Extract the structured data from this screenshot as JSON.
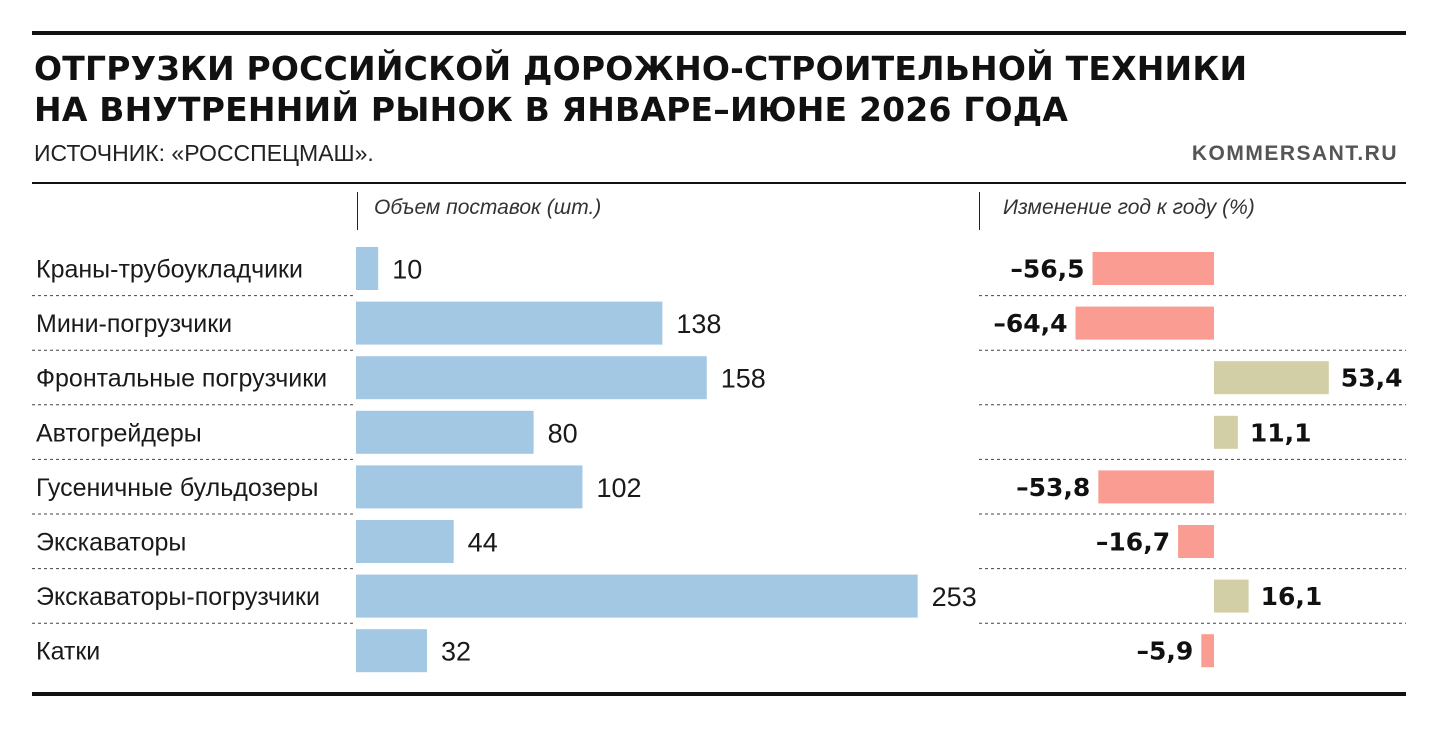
{
  "header": {
    "title_line1": "ОТГРУЗКИ РОССИЙСКОЙ ДОРОЖНО-СТРОИТЕЛЬНОЙ ТЕХНИКИ",
    "title_line2": "НА ВНУТРЕННИЙ РЫНОК В ЯНВАРЕ–ИЮНЕ 2026 ГОДА",
    "source": "ИСТОЧНИК: «РОССПЕЦМАШ».",
    "brand": "KOMMERSANT.RU"
  },
  "chart_data": {
    "type": "bar",
    "orientation": "horizontal",
    "categories": [
      "Краны-трубоукладчики",
      "Мини-погрузчики",
      "Фронтальные погрузчики",
      "Автогрейдеры",
      "Гусеничные бульдозеры",
      "Экскаваторы",
      "Экскаваторы-погрузчики",
      "Катки"
    ],
    "series": [
      {
        "name": "Объем поставок (шт.)",
        "values": [
          10,
          138,
          158,
          80,
          102,
          44,
          253,
          32
        ],
        "labels": [
          "10",
          "138",
          "158",
          "80",
          "102",
          "44",
          "253",
          "32"
        ],
        "color": "#a3c8e4"
      },
      {
        "name": "Изменение год к году (%)",
        "values": [
          -56.5,
          -64.4,
          53.4,
          11.1,
          -53.8,
          -16.7,
          16.1,
          -5.9
        ],
        "labels": [
          "–56,5",
          "–64,4",
          "53,4",
          "11,1",
          "–53,8",
          "–16,7",
          "16,1",
          "–5,9"
        ],
        "positive_color": "#d2cfa6",
        "negative_color": "#fa9c92"
      }
    ],
    "grid": "dashed row separators",
    "legend": "none"
  }
}
